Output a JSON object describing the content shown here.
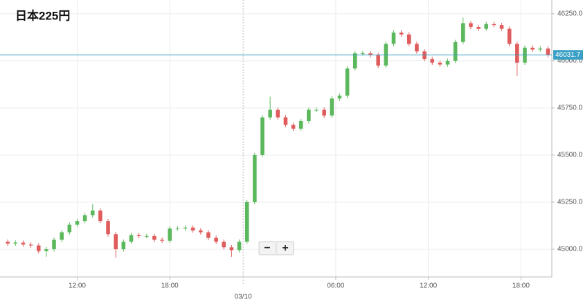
{
  "chart_data": {
    "type": "candlestick",
    "title": "日本225円",
    "x": [
      1,
      2,
      3,
      4,
      5,
      6,
      7,
      8,
      9,
      10,
      11,
      12,
      13,
      14,
      15,
      16,
      17,
      18,
      19,
      20,
      21,
      22,
      23,
      24,
      25,
      26,
      27,
      28,
      29,
      30,
      31,
      32,
      33,
      34,
      35,
      36,
      37,
      38,
      39,
      40,
      41,
      42,
      43,
      44,
      45,
      46,
      47,
      48,
      49,
      50,
      51,
      52,
      53,
      54,
      55,
      56,
      57,
      58,
      59,
      60,
      61,
      62,
      63,
      64,
      65,
      66,
      67,
      68,
      69,
      70,
      71
    ],
    "open": [
      45040,
      45030,
      45035,
      45025,
      45020,
      44990,
      45000,
      45050,
      45090,
      45130,
      45150,
      45180,
      45205,
      45150,
      45080,
      45000,
      45040,
      45075,
      45070,
      45070,
      45050,
      45045,
      45110,
      45110,
      45115,
      45100,
      45090,
      45060,
      45040,
      45010,
      44995,
      45040,
      45250,
      45500,
      45700,
      45740,
      45700,
      45660,
      45640,
      45680,
      45740,
      45740,
      45710,
      45800,
      45815,
      45960,
      46040,
      46040,
      46030,
      45975,
      46090,
      46150,
      46140,
      46090,
      46050,
      46010,
      45990,
      45980,
      46000,
      46100,
      46200,
      46180,
      46170,
      46195,
      46190,
      46170,
      46090,
      45990,
      46070,
      46060,
      46065
    ],
    "high": [
      45052,
      45047,
      45047,
      45037,
      45032,
      45012,
      45062,
      45102,
      45142,
      45162,
      45192,
      45240,
      45217,
      45162,
      45092,
      45052,
      45087,
      45087,
      45082,
      45082,
      45062,
      45122,
      45122,
      45127,
      45127,
      45112,
      45102,
      45072,
      45052,
      45022,
      45052,
      45262,
      45512,
      45712,
      45810,
      45752,
      45712,
      45672,
      45692,
      45752,
      45752,
      45752,
      45812,
      45827,
      45972,
      46052,
      46052,
      46052,
      46042,
      46102,
      46162,
      46162,
      46152,
      46102,
      46062,
      46022,
      46002,
      46012,
      46112,
      46230,
      46212,
      46192,
      46207,
      46207,
      46202,
      46182,
      46102,
      46082,
      46082,
      46077,
      46077
    ],
    "low": [
      45018,
      45018,
      45013,
      45008,
      44978,
      44960,
      44988,
      45038,
      45078,
      45118,
      45138,
      45168,
      45138,
      45068,
      44955,
      44988,
      45028,
      45058,
      45058,
      45038,
      45033,
      45033,
      45098,
      45098,
      45088,
      45078,
      45048,
      45028,
      44998,
      44960,
      44983,
      45028,
      45238,
      45488,
      45688,
      45688,
      45648,
      45628,
      45628,
      45668,
      45728,
      45698,
      45698,
      45788,
      45803,
      45948,
      46028,
      46018,
      45963,
      45963,
      46078,
      46128,
      46078,
      46038,
      45998,
      45978,
      45968,
      45968,
      45988,
      46088,
      46168,
      46158,
      46158,
      46178,
      46158,
      46078,
      45920,
      45978,
      46048,
      46048,
      46019.7
    ],
    "close": [
      45030,
      45035,
      45025,
      45020,
      44990,
      45000,
      45050,
      45090,
      45130,
      45150,
      45180,
      45205,
      45150,
      45080,
      45000,
      45040,
      45075,
      45070,
      45070,
      45050,
      45045,
      45110,
      45110,
      45115,
      45100,
      45090,
      45060,
      45040,
      45010,
      44995,
      45040,
      45250,
      45500,
      45700,
      45740,
      45700,
      45660,
      45640,
      45680,
      45740,
      45740,
      45710,
      45800,
      45815,
      45960,
      46040,
      46040,
      46030,
      45975,
      46090,
      46150,
      46140,
      46090,
      46050,
      46010,
      45990,
      45980,
      46000,
      46100,
      46200,
      46180,
      46170,
      46195,
      46190,
      46170,
      46090,
      45990,
      46070,
      46060,
      46065,
      46031.7
    ],
    "up_color": "#5cb85c",
    "down_color": "#e05c5c",
    "last_price": 46031.7,
    "last_price_color": "#3a9fc4",
    "xlim": [
      0,
      71.5
    ],
    "xticks": [
      {
        "value": 10,
        "label": "12:00"
      },
      {
        "value": 22,
        "label": "18:00"
      },
      {
        "value": 31.5,
        "label": "03/10"
      },
      {
        "value": 43.5,
        "label": "06:00"
      },
      {
        "value": 55.5,
        "label": "12:00"
      },
      {
        "value": 67.5,
        "label": "18:00"
      }
    ],
    "ylim": [
      44853,
      46323
    ],
    "yticks": [
      {
        "value": 45000,
        "label": "45000.0"
      },
      {
        "value": 45250,
        "label": "45250.0"
      },
      {
        "value": 45500,
        "label": "45500.0"
      },
      {
        "value": 45750,
        "label": "45750.0"
      },
      {
        "value": 46000,
        "label": "46000.0"
      },
      {
        "value": 46250,
        "label": "46250.0"
      }
    ],
    "grid": true
  },
  "controls": {
    "zoom_out": "−",
    "zoom_in": "+"
  }
}
